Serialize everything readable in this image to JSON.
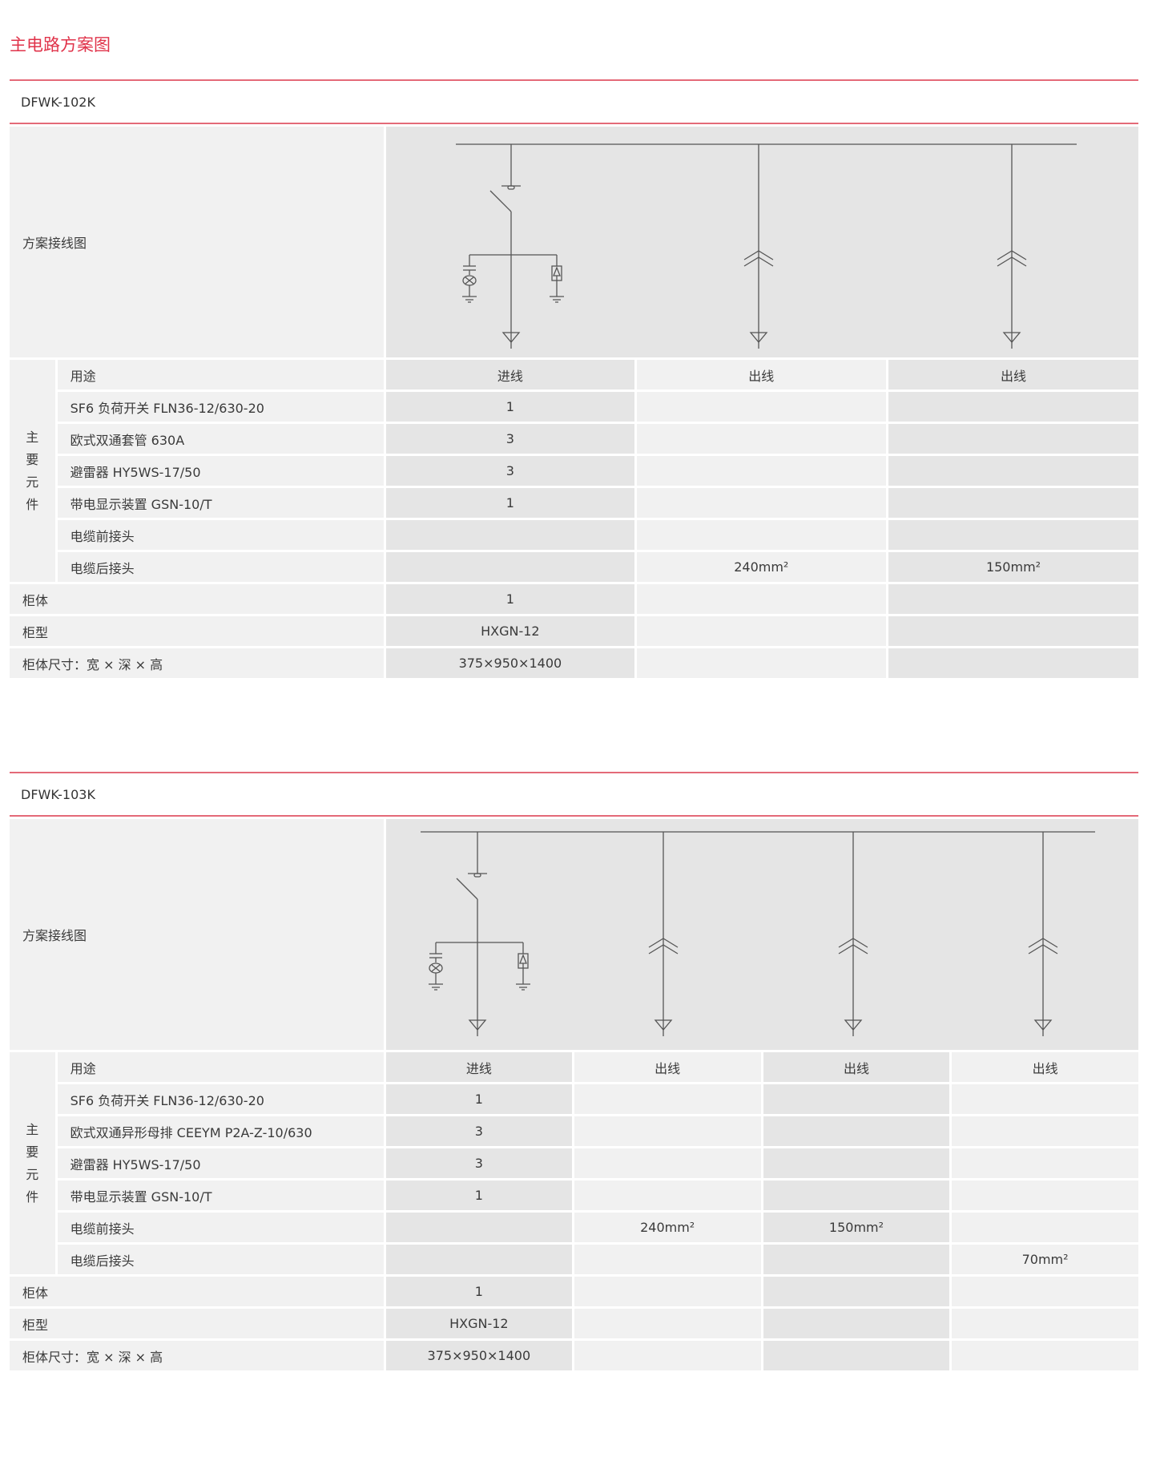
{
  "page_title": "主电路方案图",
  "sections": [
    {
      "model": "DFWK-102K",
      "diagram_label": "方案接线图",
      "group_label": "主要元件",
      "columns": [
        "进线",
        "出线",
        "出线"
      ],
      "feeders": [
        "incoming",
        "outgoing",
        "outgoing"
      ],
      "rows": [
        {
          "label": "用途",
          "values": [
            "进线",
            "出线",
            "出线"
          ]
        },
        {
          "label": "SF6 负荷开关 FLN36-12/630-20",
          "values": [
            "1",
            "",
            ""
          ]
        },
        {
          "label": "欧式双通套管 630A",
          "values": [
            "3",
            "",
            ""
          ]
        },
        {
          "label": "避雷器 HY5WS-17/50",
          "values": [
            "3",
            "",
            ""
          ]
        },
        {
          "label": "带电显示装置 GSN-10/T",
          "values": [
            "1",
            "",
            ""
          ]
        },
        {
          "label": "电缆前接头",
          "values": [
            "",
            "",
            ""
          ]
        },
        {
          "label": "电缆后接头",
          "values": [
            "",
            "240mm²",
            "150mm²"
          ]
        }
      ],
      "footer_rows": [
        {
          "label": "柜体",
          "values": [
            "1",
            "",
            ""
          ]
        },
        {
          "label": "柜型",
          "values": [
            "HXGN-12",
            "",
            ""
          ]
        },
        {
          "label": "柜体尺寸：宽 × 深 × 高",
          "values": [
            "375×950×1400",
            "",
            ""
          ]
        }
      ]
    },
    {
      "model": "DFWK-103K",
      "diagram_label": "方案接线图",
      "group_label": "主要元件",
      "columns": [
        "进线",
        "出线",
        "出线",
        "出线"
      ],
      "feeders": [
        "incoming",
        "outgoing",
        "outgoing",
        "outgoing"
      ],
      "rows": [
        {
          "label": "用途",
          "values": [
            "进线",
            "出线",
            "出线",
            "出线"
          ]
        },
        {
          "label": "SF6 负荷开关 FLN36-12/630-20",
          "values": [
            "1",
            "",
            "",
            ""
          ]
        },
        {
          "label": "欧式双通异形母排 CEEYM P2A-Z-10/630",
          "values": [
            "3",
            "",
            "",
            ""
          ]
        },
        {
          "label": "避雷器 HY5WS-17/50",
          "values": [
            "3",
            "",
            "",
            ""
          ]
        },
        {
          "label": "带电显示装置 GSN-10/T",
          "values": [
            "1",
            "",
            "",
            ""
          ]
        },
        {
          "label": "电缆前接头",
          "values": [
            "",
            "240mm²",
            "150mm²",
            ""
          ]
        },
        {
          "label": "电缆后接头",
          "values": [
            "",
            "",
            "",
            "70mm²"
          ]
        }
      ],
      "footer_rows": [
        {
          "label": "柜体",
          "values": [
            "1",
            "",
            "",
            ""
          ]
        },
        {
          "label": "柜型",
          "values": [
            "HXGN-12",
            "",
            "",
            ""
          ]
        },
        {
          "label": "柜体尺寸：宽 × 深 × 高",
          "values": [
            "375×950×1400",
            "",
            "",
            ""
          ]
        }
      ]
    }
  ],
  "colors": {
    "accent": "#e0334a",
    "cell_light": "#f1f1f1",
    "cell_dark": "#e5e5e5",
    "line": "#555555"
  }
}
